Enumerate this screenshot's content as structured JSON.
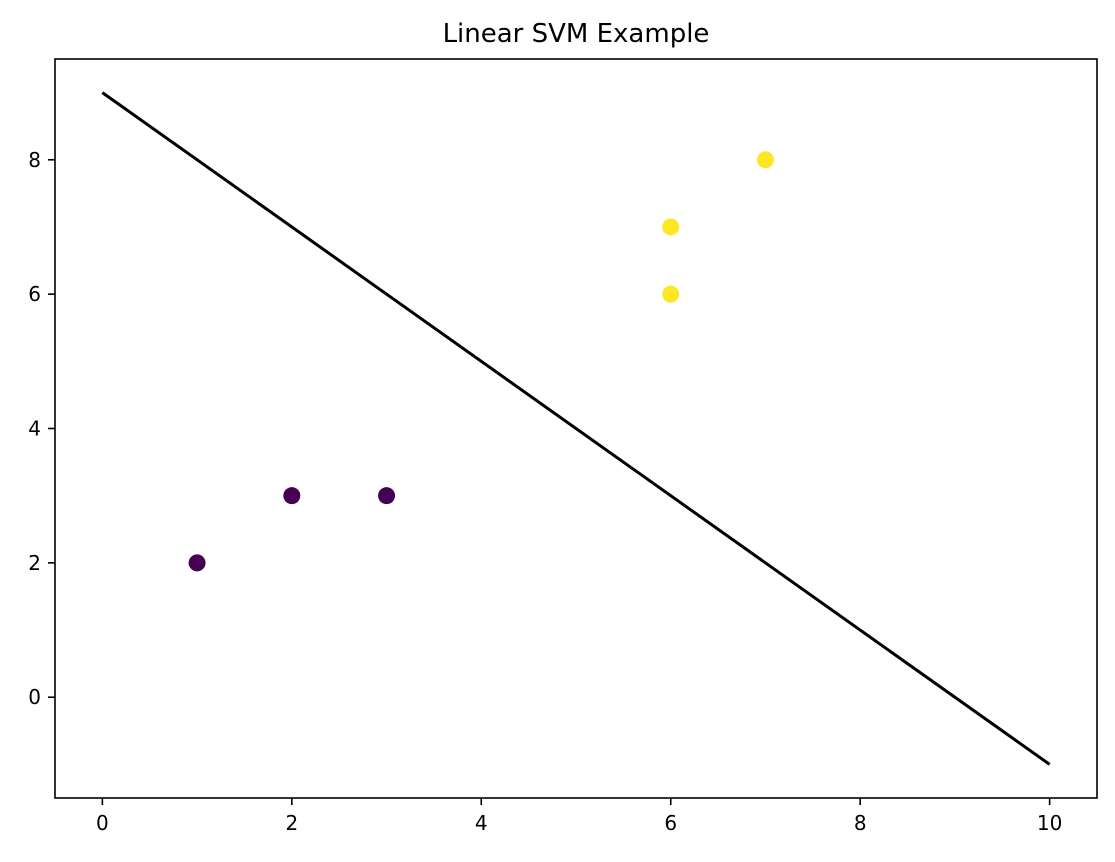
{
  "chart_data": {
    "type": "scatter",
    "title": "Linear SVM Example",
    "xlabel": "",
    "ylabel": "",
    "xlim": [
      -0.5,
      10.5
    ],
    "ylim": [
      -1.5,
      9.5
    ],
    "grid": false,
    "x_ticks": [
      0,
      2,
      4,
      6,
      8,
      10
    ],
    "y_ticks": [
      0,
      2,
      4,
      6,
      8
    ],
    "series": [
      {
        "class": 0,
        "color": "#440154",
        "points": [
          {
            "x": 1,
            "y": 2
          },
          {
            "x": 2,
            "y": 3
          },
          {
            "x": 3,
            "y": 3
          }
        ]
      },
      {
        "class": 1,
        "color": "#fde725",
        "points": [
          {
            "x": 6,
            "y": 6
          },
          {
            "x": 6,
            "y": 7
          },
          {
            "x": 7,
            "y": 8
          }
        ]
      }
    ],
    "decision_boundary": {
      "color": "#000000",
      "points": [
        {
          "x": 0,
          "y": 9
        },
        {
          "x": 10,
          "y": -1
        }
      ]
    }
  }
}
